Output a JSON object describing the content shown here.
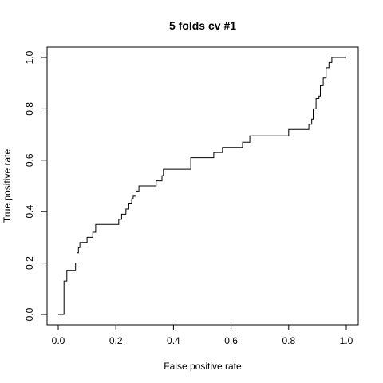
{
  "chart_data": {
    "type": "line",
    "title": "5 folds cv #1",
    "xlabel": "False positive rate",
    "ylabel": "True positive rate",
    "xlim": [
      0,
      1
    ],
    "ylim": [
      0,
      1
    ],
    "x_ticks": [
      0.0,
      0.2,
      0.4,
      0.6,
      0.8,
      1.0
    ],
    "y_ticks": [
      0.0,
      0.2,
      0.4,
      0.6,
      0.8,
      1.0
    ],
    "x_tick_labels": [
      "0.0",
      "0.2",
      "0.4",
      "0.6",
      "0.8",
      "1.0"
    ],
    "y_tick_labels": [
      "0.0",
      "0.2",
      "0.4",
      "0.6",
      "0.8",
      "1.0"
    ],
    "grid": false,
    "line_color": "#000000",
    "series": [
      {
        "points": [
          [
            0.0,
            0.0
          ],
          [
            0.02,
            0.0
          ],
          [
            0.02,
            0.13
          ],
          [
            0.03,
            0.13
          ],
          [
            0.03,
            0.17
          ],
          [
            0.06,
            0.17
          ],
          [
            0.06,
            0.2
          ],
          [
            0.065,
            0.2
          ],
          [
            0.065,
            0.24
          ],
          [
            0.07,
            0.24
          ],
          [
            0.07,
            0.26
          ],
          [
            0.075,
            0.26
          ],
          [
            0.075,
            0.28
          ],
          [
            0.1,
            0.28
          ],
          [
            0.1,
            0.3
          ],
          [
            0.12,
            0.3
          ],
          [
            0.12,
            0.32
          ],
          [
            0.13,
            0.32
          ],
          [
            0.13,
            0.35
          ],
          [
            0.21,
            0.35
          ],
          [
            0.21,
            0.37
          ],
          [
            0.22,
            0.37
          ],
          [
            0.22,
            0.39
          ],
          [
            0.235,
            0.39
          ],
          [
            0.235,
            0.41
          ],
          [
            0.245,
            0.41
          ],
          [
            0.245,
            0.43
          ],
          [
            0.255,
            0.43
          ],
          [
            0.255,
            0.45
          ],
          [
            0.26,
            0.45
          ],
          [
            0.26,
            0.46
          ],
          [
            0.27,
            0.46
          ],
          [
            0.27,
            0.48
          ],
          [
            0.28,
            0.48
          ],
          [
            0.28,
            0.5
          ],
          [
            0.34,
            0.5
          ],
          [
            0.34,
            0.52
          ],
          [
            0.36,
            0.52
          ],
          [
            0.36,
            0.54
          ],
          [
            0.365,
            0.54
          ],
          [
            0.365,
            0.565
          ],
          [
            0.46,
            0.565
          ],
          [
            0.46,
            0.61
          ],
          [
            0.54,
            0.61
          ],
          [
            0.54,
            0.63
          ],
          [
            0.57,
            0.63
          ],
          [
            0.57,
            0.65
          ],
          [
            0.64,
            0.65
          ],
          [
            0.64,
            0.67
          ],
          [
            0.665,
            0.67
          ],
          [
            0.665,
            0.695
          ],
          [
            0.8,
            0.695
          ],
          [
            0.8,
            0.72
          ],
          [
            0.87,
            0.72
          ],
          [
            0.87,
            0.74
          ],
          [
            0.88,
            0.74
          ],
          [
            0.88,
            0.76
          ],
          [
            0.885,
            0.76
          ],
          [
            0.885,
            0.8
          ],
          [
            0.895,
            0.8
          ],
          [
            0.895,
            0.84
          ],
          [
            0.905,
            0.84
          ],
          [
            0.905,
            0.85
          ],
          [
            0.91,
            0.85
          ],
          [
            0.91,
            0.89
          ],
          [
            0.92,
            0.89
          ],
          [
            0.92,
            0.92
          ],
          [
            0.93,
            0.92
          ],
          [
            0.93,
            0.96
          ],
          [
            0.94,
            0.96
          ],
          [
            0.94,
            0.98
          ],
          [
            0.95,
            0.98
          ],
          [
            0.95,
            1.0
          ],
          [
            1.0,
            1.0
          ]
        ]
      }
    ]
  }
}
